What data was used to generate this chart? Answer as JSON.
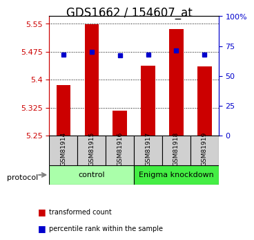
{
  "title": "GDS1662 / 154607_at",
  "samples": [
    "GSM81914",
    "GSM81915",
    "GSM81916",
    "GSM81917",
    "GSM81918",
    "GSM81919"
  ],
  "bar_values": [
    5.385,
    5.548,
    5.316,
    5.437,
    5.535,
    5.435
  ],
  "percentile_values": [
    68,
    70,
    67,
    68,
    71,
    68
  ],
  "y_min": 5.25,
  "y_max": 5.57,
  "y_ticks": [
    5.25,
    5.325,
    5.4,
    5.475,
    5.55
  ],
  "y_tick_labels": [
    "5.25",
    "5.325",
    "5.4",
    "5.475",
    "5.55"
  ],
  "right_y_ticks": [
    0,
    25,
    50,
    75,
    100
  ],
  "right_y_labels": [
    "0",
    "25",
    "50",
    "75",
    "100%"
  ],
  "bar_color": "#cc0000",
  "marker_color": "#0000cc",
  "groups": [
    {
      "label": "control",
      "start": 0,
      "end": 3,
      "color": "#aaffaa"
    },
    {
      "label": "Enigma knockdown",
      "start": 3,
      "end": 6,
      "color": "#44ee44"
    }
  ],
  "protocol_label": "protocol",
  "legend_items": [
    {
      "label": "transformed count",
      "color": "#cc0000",
      "marker": "s"
    },
    {
      "label": "percentile rank within the sample",
      "color": "#0000cc",
      "marker": "s"
    }
  ],
  "grid_color": "black",
  "grid_alpha": 0.5,
  "title_fontsize": 12,
  "tick_label_color_left": "#cc0000",
  "tick_label_color_right": "#0000cc"
}
